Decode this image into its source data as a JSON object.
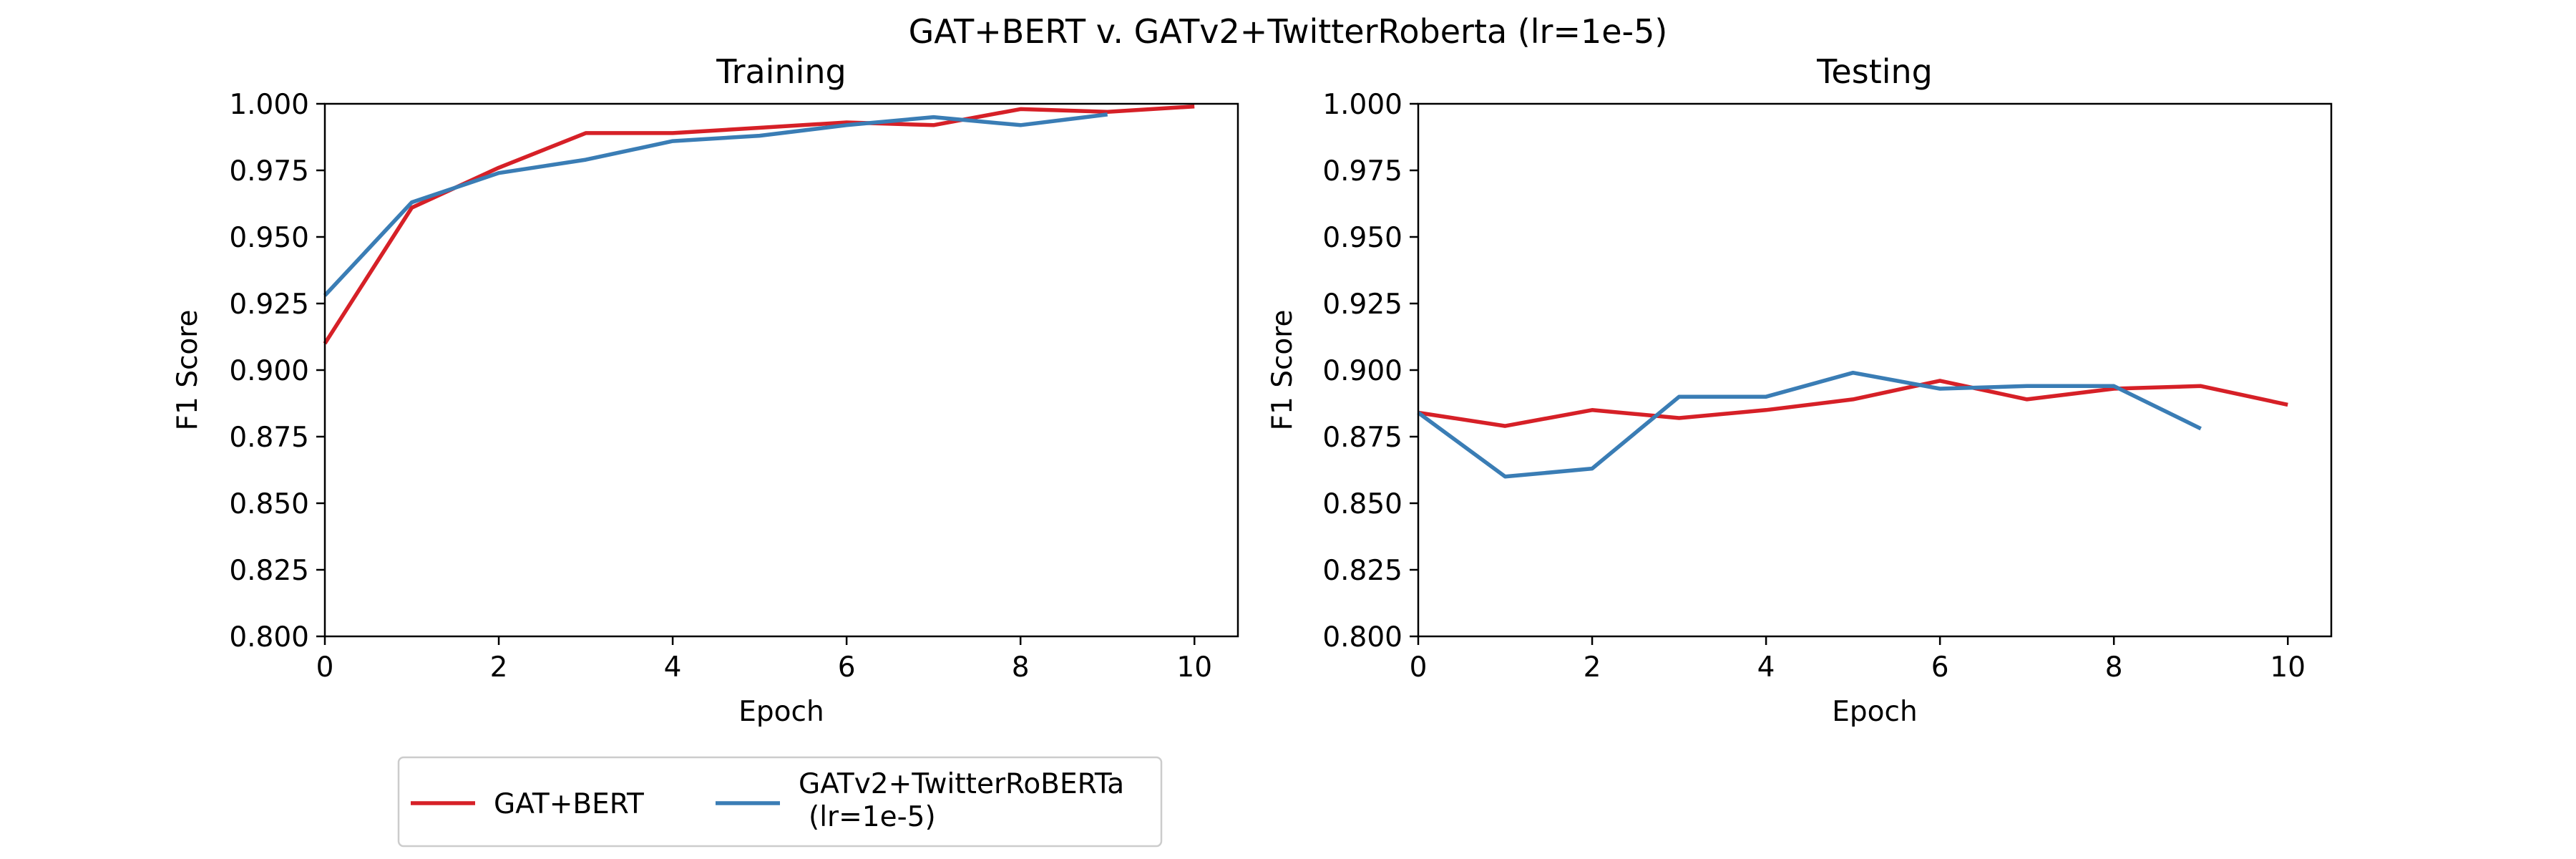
{
  "figure": {
    "title": "GAT+BERT v. GATv2+TwitterRoberta (lr=1e-5)"
  },
  "colors": {
    "gat_bert": "#d62027",
    "gatv2_roberta": "#3a7db5"
  },
  "legend": {
    "placement": "lower-left, below training panel",
    "entries": [
      {
        "label": "GAT+BERT",
        "color": "#d62027"
      },
      {
        "label_lines": [
          "GATv2+TwitterRoBERTa",
          "(lr=1e-5)"
        ],
        "color": "#3a7db5"
      }
    ]
  },
  "chart_data": [
    {
      "type": "line",
      "title": "Training",
      "xlabel": "Epoch",
      "ylabel": "F1 Score",
      "xlim": [
        0,
        10.5
      ],
      "ylim": [
        0.8,
        1.0
      ],
      "xticks": [
        0,
        2,
        4,
        6,
        8,
        10
      ],
      "yticks": [
        "0.800",
        "0.825",
        "0.850",
        "0.875",
        "0.900",
        "0.925",
        "0.950",
        "0.975",
        "1.000"
      ],
      "grid": false,
      "series": [
        {
          "color": "#d62027",
          "x": [
            0,
            1,
            2,
            3,
            4,
            5,
            6,
            7,
            8,
            9,
            10
          ],
          "y": [
            0.91,
            0.961,
            0.976,
            0.989,
            0.989,
            0.991,
            0.993,
            0.992,
            0.998,
            0.997,
            0.999
          ]
        },
        {
          "color": "#3a7db5",
          "x": [
            0,
            1,
            2,
            3,
            4,
            5,
            6,
            7,
            8,
            9
          ],
          "y": [
            0.928,
            0.963,
            0.974,
            0.979,
            0.986,
            0.988,
            0.992,
            0.995,
            0.992,
            0.996
          ]
        }
      ]
    },
    {
      "type": "line",
      "title": "Testing",
      "xlabel": "Epoch",
      "ylabel": "F1 Score",
      "xlim": [
        0,
        10.5
      ],
      "ylim": [
        0.8,
        1.0
      ],
      "xticks": [
        0,
        2,
        4,
        6,
        8,
        10
      ],
      "yticks": [
        "0.800",
        "0.825",
        "0.850",
        "0.875",
        "0.900",
        "0.925",
        "0.950",
        "0.975",
        "1.000"
      ],
      "grid": false,
      "series": [
        {
          "color": "#d62027",
          "x": [
            0,
            1,
            2,
            3,
            4,
            5,
            6,
            7,
            8,
            9,
            10
          ],
          "y": [
            0.884,
            0.879,
            0.885,
            0.882,
            0.885,
            0.889,
            0.896,
            0.889,
            0.893,
            0.894,
            0.887
          ]
        },
        {
          "color": "#3a7db5",
          "x": [
            0,
            1,
            2,
            3,
            4,
            5,
            6,
            7,
            8,
            9
          ],
          "y": [
            0.884,
            0.86,
            0.863,
            0.89,
            0.89,
            0.899,
            0.893,
            0.894,
            0.894,
            0.878
          ]
        }
      ]
    }
  ]
}
